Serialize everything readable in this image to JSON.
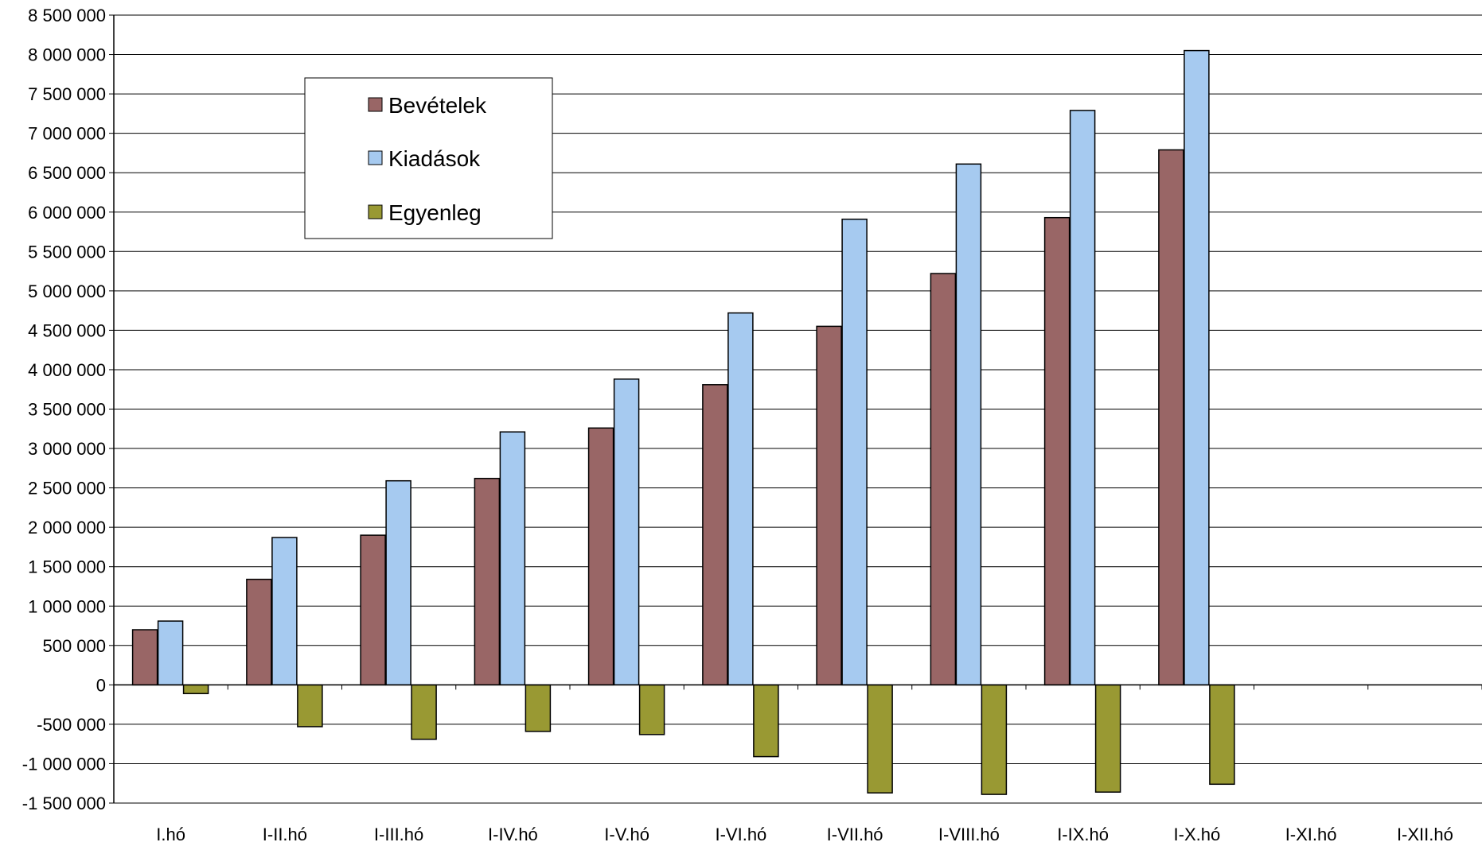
{
  "chart_data": {
    "type": "bar",
    "categories": [
      "I.hó",
      "I-II.hó",
      "I-III.hó",
      "I-IV.hó",
      "I-V.hó",
      "I-VI.hó",
      "I-VII.hó",
      "I-VIII.hó",
      "I-IX.hó",
      "I-X.hó",
      "I-XI.hó",
      "I-XII.hó"
    ],
    "series": [
      {
        "name": "Bevételek",
        "color": "#996666",
        "values": [
          700000,
          1340000,
          1900000,
          2620000,
          3260000,
          3810000,
          4550000,
          5220000,
          5930000,
          6790000,
          null,
          null
        ]
      },
      {
        "name": "Kiadások",
        "color": "#a6caf0",
        "values": [
          810000,
          1870000,
          2590000,
          3210000,
          3880000,
          4720000,
          5910000,
          6610000,
          7290000,
          8050000,
          null,
          null
        ]
      },
      {
        "name": "Egyenleg",
        "color": "#999933",
        "values": [
          -110000,
          -530000,
          -690000,
          -590000,
          -630000,
          -910000,
          -1370000,
          -1390000,
          -1360000,
          -1260000,
          null,
          null
        ]
      }
    ],
    "ylim": [
      -1500000,
      8500000
    ],
    "ytick_step": 500000,
    "ytick_labels": [
      "-1 500 000",
      "-1 000 000",
      "-500 000",
      "0",
      "500 000",
      "1 000 000",
      "1 500 000",
      "2 000 000",
      "2 500 000",
      "3 000 000",
      "3 500 000",
      "4 000 000",
      "4 500 000",
      "5 000 000",
      "5 500 000",
      "6 000 000",
      "6 500 000",
      "7 000 000",
      "7 500 000",
      "8 000 000",
      "8 500 000"
    ],
    "grid": true,
    "legend_position": "top-left"
  }
}
